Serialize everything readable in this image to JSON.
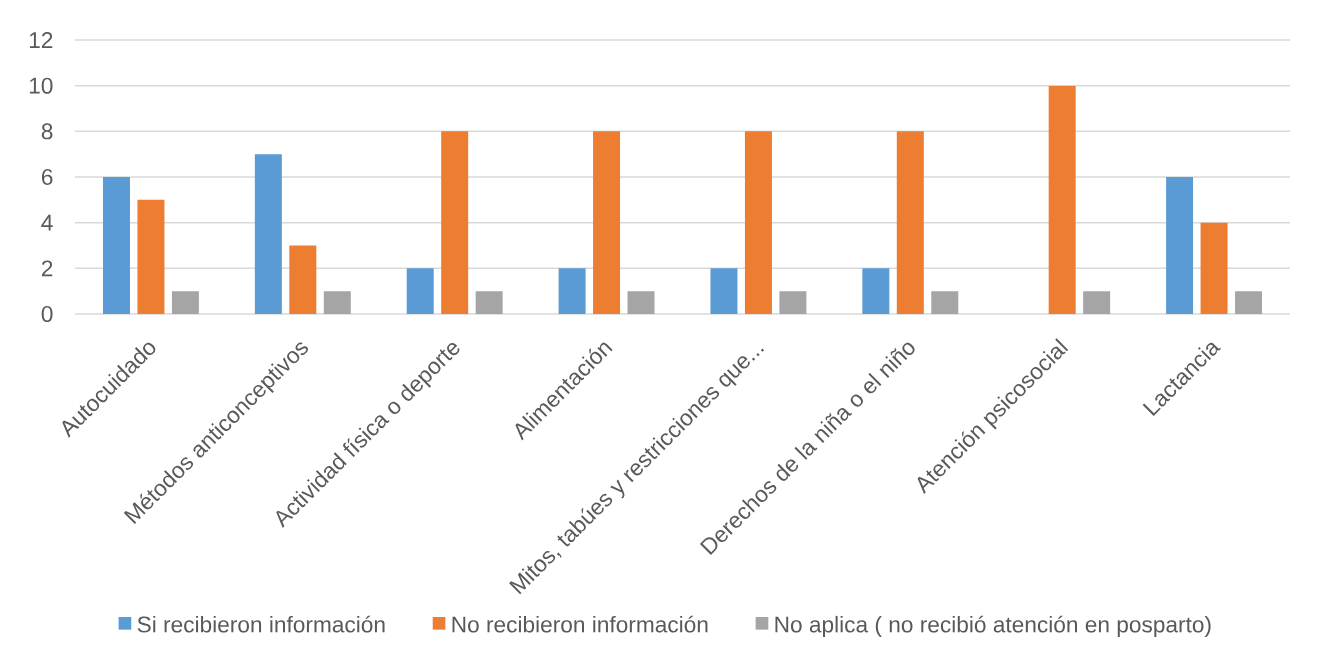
{
  "chart_data": {
    "type": "bar",
    "categories": [
      "Autocuidado",
      "Métodos anticonceptivos",
      "Actividad física o deporte",
      "Alimentación",
      "Mitos, tabúes y restricciones que...",
      "Derechos de la niña o el niño",
      "Atención psicosocial",
      "Lactancia"
    ],
    "series": [
      {
        "name": "Si recibieron información",
        "color": "#5b9bd5",
        "values": [
          6,
          7,
          2,
          2,
          2,
          2,
          0,
          6
        ]
      },
      {
        "name": "No recibieron información",
        "color": "#ed7d31",
        "values": [
          5,
          3,
          8,
          8,
          8,
          8,
          10,
          4
        ]
      },
      {
        "name": "No aplica ( no recibió atención en posparto)",
        "color": "#a5a5a5",
        "values": [
          1,
          1,
          1,
          1,
          1,
          1,
          1,
          1
        ]
      }
    ],
    "ylim": [
      0,
      12
    ],
    "yticks": [
      0,
      2,
      4,
      6,
      8,
      10,
      12
    ],
    "grid": "y",
    "legend": "bottom"
  }
}
